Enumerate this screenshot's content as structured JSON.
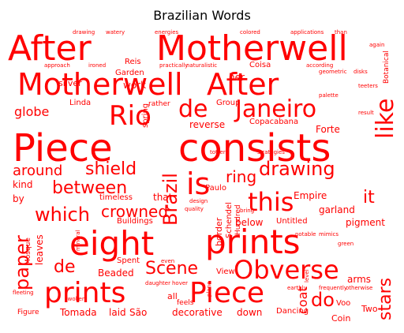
{
  "title": "Brazilian Words",
  "color": "#ff0000",
  "words": [
    "After",
    "Motherwell",
    "Motherwell",
    "After",
    "Rio",
    "de",
    "Janeiro",
    "like",
    "Piece",
    "consists",
    "eight",
    "prints",
    "is",
    "this",
    "Obverse",
    "prints",
    "Piece",
    "paper",
    "which",
    "between",
    "shield",
    "crowned",
    "around",
    "drawing",
    "ring",
    "Brazil",
    "Scene",
    "stars",
    "do",
    "coat",
    "de",
    "it",
    "globe",
    "work",
    "Garden",
    "Reis",
    "her",
    "Coisa",
    "Group",
    "Forte",
    "Copacabana",
    "reverse",
    "spring",
    "Linda",
    "rather",
    "silver",
    "Botanical",
    "Empire",
    "garland",
    "pigment",
    "below",
    "Untitled",
    "border",
    "Schendel",
    "Hundred",
    "Beaded",
    "leaves",
    "Mosque",
    "Buildings",
    "Paulo",
    "that",
    "timeless",
    "kind",
    "by",
    "Tomada",
    "laid",
    "São",
    "decorative",
    "down",
    "Dancing",
    "Coin",
    "Two",
    "Voo",
    "arms",
    "View",
    "all",
    "Spent",
    "feels",
    "Figure",
    "approach",
    "drawing",
    "watery",
    "energies",
    "colored",
    "applications",
    "than",
    "according",
    "geometric",
    "disks",
    "practically",
    "ironed",
    "naturalistic",
    "palette",
    "teeters",
    "result",
    "strategies",
    "totters",
    "notable",
    "mimics",
    "frequently",
    "otherwise",
    "earthly",
    "fleeting",
    "swollen",
    "daughter",
    "hover",
    "even",
    "plane",
    "level",
    "design",
    "quality",
    "mineral",
    "bring",
    "green",
    "again"
  ]
}
